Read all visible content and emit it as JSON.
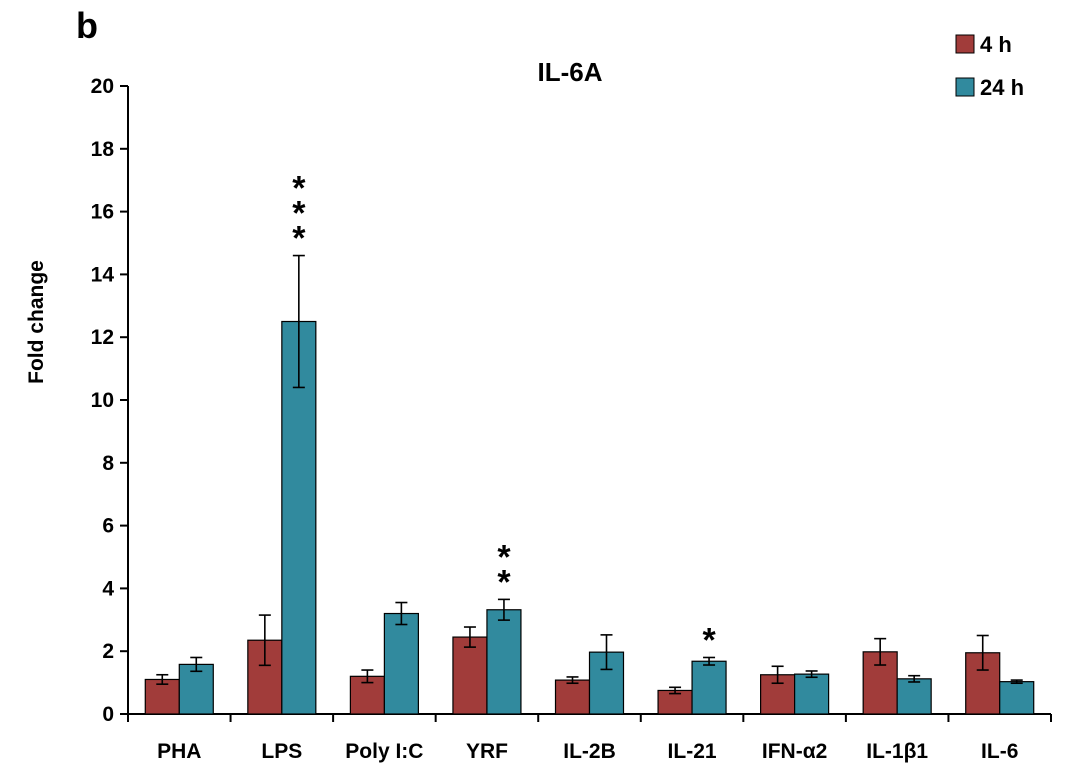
{
  "chart_data": {
    "type": "bar",
    "panel_label": "b",
    "title": "IL-6A",
    "xlabel": "",
    "ylabel": "Fold change",
    "ylim": [
      0,
      20
    ],
    "yticks": [
      0,
      2,
      4,
      6,
      8,
      10,
      12,
      14,
      16,
      18,
      20
    ],
    "grid": false,
    "legend": "top-right",
    "categories": [
      "PHA",
      "LPS",
      "Poly I:C",
      "YRF",
      "IL-2B",
      "IL-21",
      "IFN-α2",
      "IL-1β1",
      "IL-6"
    ],
    "series": [
      {
        "name": "4 h",
        "color": "#A13C3A",
        "values": [
          1.1,
          2.35,
          1.2,
          2.45,
          1.08,
          0.75,
          1.25,
          1.98,
          1.95
        ],
        "errors": [
          0.15,
          0.8,
          0.2,
          0.32,
          0.1,
          0.1,
          0.27,
          0.42,
          0.55
        ],
        "significance": [
          "",
          "",
          "",
          "",
          "",
          "",
          "",
          "",
          ""
        ]
      },
      {
        "name": "24 h",
        "color": "#318A9E",
        "values": [
          1.58,
          12.5,
          3.2,
          3.32,
          1.97,
          1.68,
          1.27,
          1.12,
          1.03
        ],
        "errors": [
          0.22,
          2.1,
          0.35,
          0.33,
          0.55,
          0.12,
          0.1,
          0.1,
          0.05
        ],
        "significance": [
          "",
          "***",
          "",
          "**",
          "",
          "*",
          "",
          "",
          ""
        ]
      }
    ]
  }
}
